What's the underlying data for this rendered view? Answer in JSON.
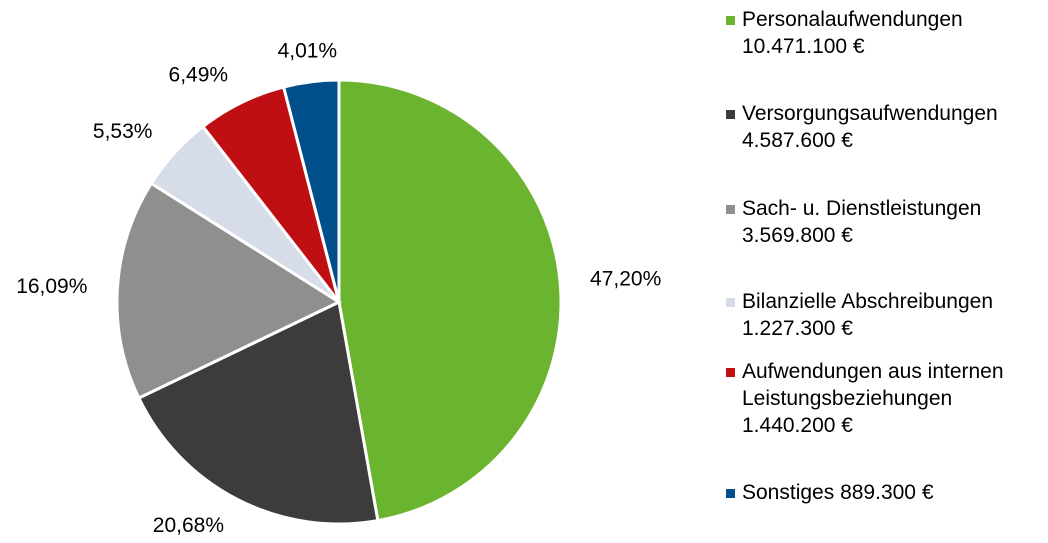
{
  "chart_data": {
    "type": "pie",
    "categories": [
      "Personalaufwendungen",
      "Versorgungsaufwendungen",
      "Sach- u. Dienstleistungen",
      "Bilanzielle Abschreibungen",
      "Aufwendungen aus internen Leistungsbeziehungen",
      "Sonstiges"
    ],
    "amount_labels": [
      "10.471.100 €",
      "4.587.600 €",
      "3.569.800 €",
      "1.227.300 €",
      "1.440.200 €",
      "889.300 €"
    ],
    "values": [
      47.2,
      20.68,
      16.09,
      5.53,
      6.49,
      4.01
    ],
    "value_labels": [
      "47,20%",
      "20,68%",
      "16,09%",
      "5,53%",
      "6,49%",
      "4,01%"
    ],
    "colors": [
      "#6ab42f",
      "#3c3c3c",
      "#8f8f8f",
      "#d6dde8",
      "#c00f13",
      "#004f8a"
    ]
  }
}
